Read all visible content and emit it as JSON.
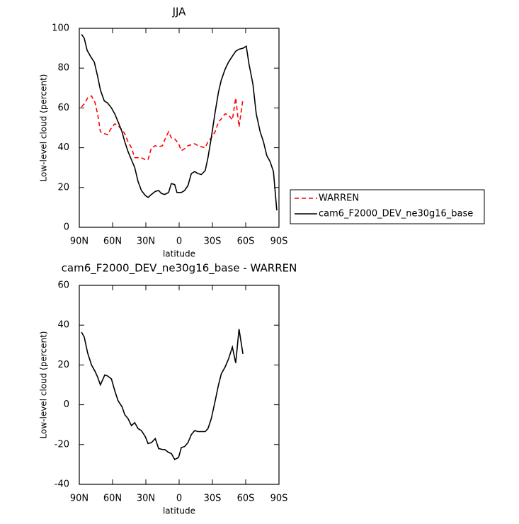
{
  "chart_data": [
    {
      "type": "line",
      "title": "JJA",
      "xlabel": "latitude",
      "ylabel": "Low-level cloud (percent)",
      "xlim": [
        90,
        -90
      ],
      "xticks": [
        {
          "value": 90,
          "label": "90N"
        },
        {
          "value": 60,
          "label": "60N"
        },
        {
          "value": 30,
          "label": "30N"
        },
        0,
        {
          "value": -30,
          "label": "30S"
        },
        {
          "value": -60,
          "label": "60S"
        },
        {
          "value": -90,
          "label": "90S"
        }
      ],
      "ylim": [
        0,
        100
      ],
      "yticks": [
        0,
        20,
        40,
        60,
        80,
        100
      ],
      "legend": "right",
      "series": [
        {
          "name": "WARREN",
          "color": "#ff0000",
          "dash": true,
          "x": [
            88,
            85.5,
            82.5,
            79,
            76,
            73.5,
            71,
            67,
            64.5,
            61,
            58,
            55,
            51.5,
            49,
            46,
            43,
            40,
            37,
            34,
            30.5,
            28,
            25,
            21.5,
            18.5,
            15,
            13,
            9.5,
            7,
            4,
            0.5,
            -2,
            -5,
            -8,
            -11,
            -14,
            -17,
            -20,
            -23.5,
            -26,
            -29,
            -32.5,
            -35.5,
            -38,
            -41.5,
            -44.5,
            -48,
            -51,
            -54,
            -57.5
          ],
          "values": [
            60.5,
            62,
            65,
            66,
            63,
            57,
            48,
            47,
            46.5,
            50,
            52,
            51,
            49,
            47,
            43,
            40,
            35,
            35,
            35,
            34,
            34,
            40,
            41,
            40.5,
            41,
            44,
            48,
            45,
            44.5,
            42,
            38.5,
            39.5,
            41,
            41.5,
            42,
            41,
            40.5,
            40,
            43,
            45,
            48,
            53,
            54.5,
            57,
            56.5,
            54,
            65,
            50.5,
            64.5
          ]
        },
        {
          "name": "cam6_F2000_DEV_ne30g16_base",
          "color": "#000000",
          "dash": false,
          "x": [
            88,
            85.5,
            83,
            80,
            76.5,
            73.5,
            71,
            67.5,
            64.5,
            61,
            58,
            55,
            51.5,
            49,
            46,
            43,
            40,
            37,
            34,
            30.5,
            28,
            25,
            21.5,
            18.5,
            16,
            13,
            9.5,
            7,
            4,
            2,
            -2,
            -5,
            -8,
            -11,
            -14,
            -17,
            -20,
            -23.5,
            -26,
            -29,
            -32.5,
            -35.5,
            -38,
            -41.5,
            -44.5,
            -48,
            -51,
            -54,
            -57.5,
            -60.5,
            -63,
            -66.5,
            -69.5,
            -73,
            -76,
            -79,
            -82,
            -85,
            -88
          ],
          "values": [
            97,
            95,
            89,
            86,
            83,
            76,
            69,
            63.5,
            62.5,
            60,
            57,
            53,
            48,
            43,
            38,
            34,
            30,
            23,
            18.5,
            16,
            15,
            16.5,
            18,
            18.5,
            17,
            16.5,
            17.5,
            22,
            21.5,
            17.5,
            17.5,
            18.5,
            21,
            27,
            28,
            27,
            26.5,
            28.5,
            35,
            45,
            58,
            68,
            74,
            79.5,
            83,
            86,
            88.5,
            89.5,
            90,
            91,
            82,
            72,
            57,
            48,
            43,
            36,
            33,
            28,
            8.5
          ]
        }
      ]
    },
    {
      "type": "line",
      "title": "cam6_F2000_DEV_ne30g16_base - WARREN",
      "xlabel": "latitude",
      "ylabel": "Low-level cloud (percent)",
      "xlim": [
        90,
        -90
      ],
      "xticks": [
        {
          "value": 90,
          "label": "90N"
        },
        {
          "value": 60,
          "label": "60N"
        },
        {
          "value": 30,
          "label": "30N"
        },
        0,
        {
          "value": -30,
          "label": "30S"
        },
        {
          "value": -60,
          "label": "60S"
        },
        {
          "value": -90,
          "label": "90S"
        }
      ],
      "ylim": [
        -40,
        60
      ],
      "yticks": [
        -40,
        -20,
        0,
        20,
        40,
        60
      ],
      "series": [
        {
          "color": "#000000",
          "dash": false,
          "x": [
            88,
            85.5,
            82.5,
            79,
            76,
            73.5,
            71,
            67,
            64.5,
            61,
            58,
            55,
            51.5,
            49,
            46,
            43,
            40,
            37,
            34,
            30.5,
            28,
            25,
            21.5,
            18.5,
            15,
            13,
            9.5,
            7,
            4,
            0.5,
            -2,
            -5,
            -8,
            -11,
            -14,
            -17,
            -20,
            -23.5,
            -26,
            -29,
            -32.5,
            -35.5,
            -38,
            -41.5,
            -44.5,
            -48,
            -51,
            -54,
            -57.5
          ],
          "values": [
            36.5,
            34,
            26,
            20,
            17,
            14,
            10,
            15,
            14.5,
            13,
            7,
            2,
            -1,
            -5,
            -7,
            -10.5,
            -9,
            -12,
            -13,
            -16,
            -19.5,
            -19,
            -17,
            -22,
            -22.5,
            -22.5,
            -24,
            -24.5,
            -27.5,
            -26.5,
            -21.5,
            -21,
            -19,
            -15,
            -13,
            -13.5,
            -13.5,
            -13.5,
            -12,
            -7,
            2,
            10,
            15.5,
            19,
            23,
            29,
            21,
            38,
            25.5
          ]
        }
      ]
    }
  ]
}
